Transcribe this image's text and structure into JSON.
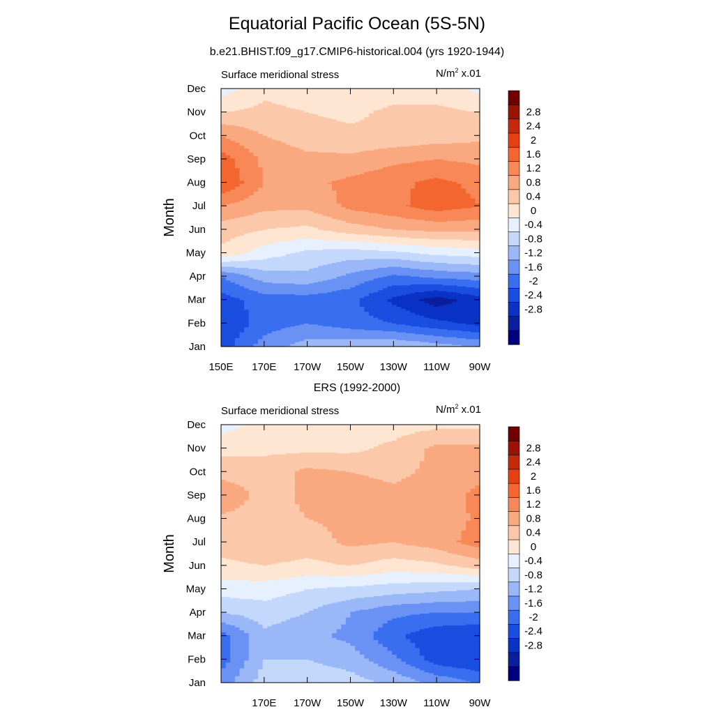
{
  "title": "Equatorial Pacific Ocean (5S-5N)",
  "subtitle": "b.e21.BHIST.f09_g17.CMIP6-historical.004 (yrs 1920-1944)",
  "colors": {
    "levels": [
      "#000080",
      "#0a1e9e",
      "#0a32c4",
      "#1a4ee0",
      "#3a6ef0",
      "#6a92f4",
      "#9ab8f8",
      "#c4d8fc",
      "#e6f0fe",
      "#fee6d2",
      "#fcc8aa",
      "#faa880",
      "#f88858",
      "#f46630",
      "#e64012",
      "#c42a0a",
      "#9a1406",
      "#700000"
    ],
    "zero_band": "#fde6d8"
  },
  "chart_data": [
    {
      "type": "heatmap",
      "title": "",
      "panel_title": "",
      "left_label": "Surface meridional stress",
      "units": "N/m",
      "units_sup": "2",
      "units_scale": "x.01",
      "ylabel": "Month",
      "xlabel": "",
      "y_ticks": [
        "Jan",
        "Feb",
        "Mar",
        "Apr",
        "May",
        "Jun",
        "Jul",
        "Aug",
        "Sep",
        "Oct",
        "Nov",
        "Dec"
      ],
      "x_ticks": [
        "150E",
        "170E",
        "170W",
        "150W",
        "130W",
        "110W",
        "90W"
      ],
      "x_range": [
        150,
        270
      ],
      "colorbar_labels": [
        "2.8",
        "2.4",
        "2",
        "1.6",
        "1.2",
        "0.8",
        "0.4",
        "0",
        "-0.4",
        "-0.8",
        "-1.2",
        "-1.6",
        "-2",
        "-2.4",
        "-2.8"
      ],
      "x": [
        150,
        170,
        190,
        210,
        230,
        250,
        270
      ],
      "rows": [
        {
          "month": "Jan",
          "values": [
            -2.2,
            -1.4,
            -1.0,
            -0.9,
            -0.8,
            -1.0,
            -1.2
          ]
        },
        {
          "month": "Feb",
          "values": [
            -2.4,
            -1.8,
            -1.6,
            -1.8,
            -2.0,
            -2.3,
            -2.5
          ]
        },
        {
          "month": "Mar",
          "values": [
            -2.2,
            -1.8,
            -1.8,
            -1.9,
            -2.5,
            -3.0,
            -2.6
          ]
        },
        {
          "month": "Apr",
          "values": [
            -1.6,
            -1.0,
            -0.9,
            -1.3,
            -1.7,
            -1.5,
            -1.4
          ]
        },
        {
          "month": "May",
          "values": [
            0.3,
            -0.2,
            -0.5,
            -0.6,
            -0.5,
            -0.3,
            -0.2
          ]
        },
        {
          "month": "Jun",
          "values": [
            0.6,
            0.4,
            0.3,
            0.6,
            0.8,
            0.9,
            0.9
          ]
        },
        {
          "month": "Jul",
          "values": [
            1.2,
            0.9,
            0.9,
            1.3,
            1.5,
            1.8,
            1.6
          ]
        },
        {
          "month": "Aug",
          "values": [
            2.0,
            1.2,
            1.1,
            1.3,
            1.5,
            1.7,
            1.5
          ]
        },
        {
          "month": "Sep",
          "values": [
            1.8,
            1.1,
            0.9,
            0.9,
            1.1,
            1.2,
            1.1
          ]
        },
        {
          "month": "Oct",
          "values": [
            1.2,
            0.8,
            0.6,
            0.5,
            0.5,
            0.6,
            0.7
          ]
        },
        {
          "month": "Nov",
          "values": [
            0.4,
            0.5,
            0.4,
            0.3,
            0.5,
            0.5,
            0.4
          ]
        },
        {
          "month": "Dec",
          "values": [
            -0.2,
            0.3,
            0.2,
            0.1,
            0.2,
            0.2,
            -0.1
          ]
        }
      ]
    },
    {
      "type": "heatmap",
      "title": "",
      "panel_title": "ERS (1992-2000)",
      "left_label": "Surface meridional stress",
      "units": "N/m",
      "units_sup": "2",
      "units_scale": "x.01",
      "ylabel": "Month",
      "xlabel": "",
      "y_ticks": [
        "Jan",
        "Feb",
        "Mar",
        "Apr",
        "May",
        "Jun",
        "Jul",
        "Aug",
        "Sep",
        "Oct",
        "Nov",
        "Dec"
      ],
      "x_ticks": [
        "170E",
        "170W",
        "150W",
        "130W",
        "110W",
        "90W"
      ],
      "x_range": [
        150,
        270
      ],
      "colorbar_labels": [
        "2.8",
        "2.4",
        "2",
        "1.6",
        "1.2",
        "0.8",
        "0.4",
        "0",
        "-0.4",
        "-0.8",
        "-1.2",
        "-1.6",
        "-2",
        "-2.4",
        "-2.8"
      ],
      "x": [
        150,
        170,
        190,
        210,
        230,
        250,
        270
      ],
      "rows": [
        {
          "month": "Jan",
          "values": [
            -1.4,
            -0.6,
            -0.5,
            -0.6,
            -0.9,
            -1.3,
            -1.6
          ]
        },
        {
          "month": "Feb",
          "values": [
            -1.8,
            -0.8,
            -0.8,
            -1.0,
            -1.5,
            -2.2,
            -2.4
          ]
        },
        {
          "month": "Mar",
          "values": [
            -1.8,
            -0.9,
            -1.1,
            -1.3,
            -1.9,
            -2.3,
            -2.4
          ]
        },
        {
          "month": "Apr",
          "values": [
            -0.8,
            -0.6,
            -0.8,
            -1.2,
            -1.5,
            -1.6,
            -1.6
          ]
        },
        {
          "month": "May",
          "values": [
            -0.2,
            -0.2,
            -0.4,
            -0.5,
            -0.6,
            -0.7,
            -0.8
          ]
        },
        {
          "month": "Jun",
          "values": [
            0.3,
            0.4,
            0.3,
            0.4,
            0.2,
            0.3,
            0.6
          ]
        },
        {
          "month": "Jul",
          "values": [
            0.6,
            0.7,
            0.6,
            0.9,
            0.8,
            1.0,
            1.4
          ]
        },
        {
          "month": "Aug",
          "values": [
            0.7,
            0.6,
            0.8,
            0.9,
            0.8,
            0.9,
            1.3
          ]
        },
        {
          "month": "Sep",
          "values": [
            1.2,
            0.6,
            0.9,
            1.0,
            0.9,
            1.0,
            1.3
          ]
        },
        {
          "month": "Oct",
          "values": [
            0.6,
            0.6,
            0.9,
            0.8,
            0.7,
            0.9,
            1.1
          ]
        },
        {
          "month": "Nov",
          "values": [
            0.3,
            0.3,
            0.3,
            0.3,
            0.5,
            0.9,
            0.9
          ]
        },
        {
          "month": "Dec",
          "values": [
            -0.2,
            0.2,
            0.1,
            0.2,
            0.2,
            0.3,
            0.3
          ]
        }
      ]
    }
  ]
}
